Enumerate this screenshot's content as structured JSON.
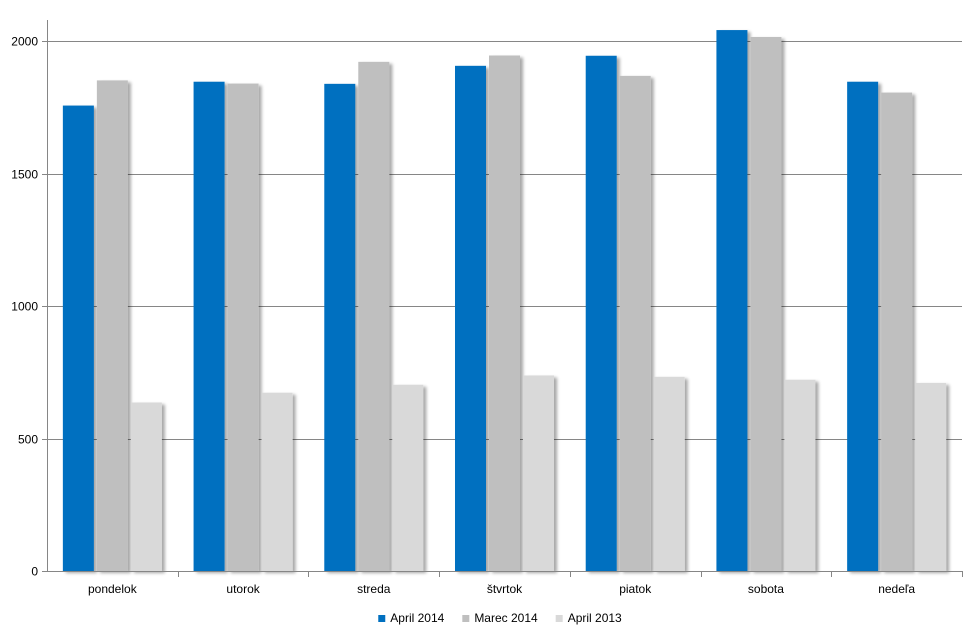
{
  "chart_data": {
    "type": "bar",
    "title": "",
    "xlabel": "",
    "ylabel": "",
    "ylim": [
      0,
      2000
    ],
    "yticks": [
      0,
      500,
      1000,
      1500,
      2000
    ],
    "grid": true,
    "legend_position": "bottom",
    "categories": [
      "pondelok",
      "utorok",
      "streda",
      "štvrtok",
      "piatok",
      "sobota",
      "nedeľa"
    ],
    "series": [
      {
        "name": "April 2014",
        "color": "#0070c0",
        "values": [
          1757,
          1847,
          1839,
          1907,
          1945,
          2042,
          1847
        ]
      },
      {
        "name": "Marec 2014",
        "color": "#bfbfbf",
        "values": [
          1852,
          1840,
          1922,
          1946,
          1869,
          2016,
          1806
        ]
      },
      {
        "name": "April 2013",
        "color": "#d9d9d9",
        "values": [
          636,
          673,
          703,
          738,
          733,
          722,
          710
        ]
      }
    ]
  }
}
